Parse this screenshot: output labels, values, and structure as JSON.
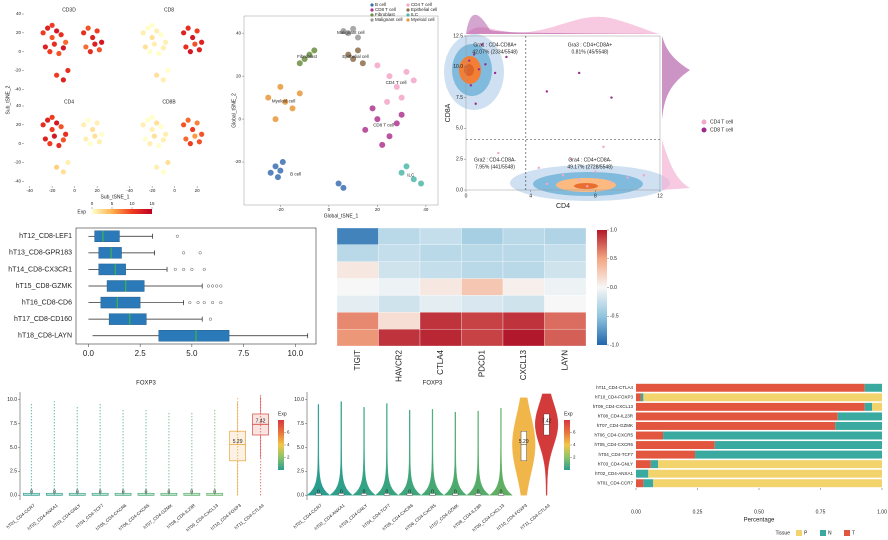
{
  "chart_data": [
    {
      "type": "tsne-expression",
      "xlabel": "Sub_tSNE_1",
      "ylabel": "Sub_tSNE_2",
      "xlim": [
        -45,
        35
      ],
      "ylim": [
        -45,
        40
      ],
      "xticks": [
        -40,
        -20,
        0,
        20
      ],
      "yticks": [
        -40,
        -20,
        0,
        20,
        40
      ],
      "x": [
        -28,
        -24,
        -20,
        -16,
        -12,
        -8,
        -26,
        -22,
        -18,
        -14,
        -10,
        -20,
        8,
        12,
        16,
        20,
        24,
        10,
        14,
        18,
        22,
        -16,
        -10,
        -6
      ],
      "y": [
        20,
        25,
        15,
        22,
        18,
        10,
        5,
        0,
        8,
        -2,
        4,
        28,
        20,
        25,
        15,
        22,
        10,
        5,
        0,
        8,
        2,
        -25,
        -30,
        -20
      ],
      "panels": [
        {
          "title": "CD3D",
          "exp": [
            10,
            12,
            9,
            13,
            11,
            8,
            12,
            10,
            11,
            9,
            13,
            10,
            11,
            9,
            12,
            10,
            13,
            8,
            11,
            12,
            9,
            10,
            12,
            11
          ]
        },
        {
          "title": "CD8",
          "exp": [
            1,
            0,
            2,
            1,
            0,
            1,
            2,
            0,
            1,
            0,
            1,
            0,
            12,
            11,
            13,
            10,
            12,
            11,
            13,
            9,
            12,
            2,
            1,
            0
          ]
        },
        {
          "title": "CD4",
          "exp": [
            11,
            12,
            10,
            13,
            9,
            11,
            12,
            10,
            13,
            11,
            9,
            10,
            1,
            0,
            2,
            1,
            0,
            1,
            0,
            2,
            1,
            3,
            2,
            1
          ]
        },
        {
          "title": "CD8B",
          "exp": [
            1,
            0,
            1,
            2,
            0,
            1,
            0,
            1,
            2,
            0,
            1,
            0,
            9,
            8,
            10,
            7,
            9,
            8,
            10,
            6,
            9,
            1,
            0,
            2
          ]
        }
      ],
      "colorbar": {
        "title": "Exp",
        "lim": [
          0,
          15
        ],
        "ticks": [
          0,
          5,
          10,
          15
        ],
        "colors": [
          "#ffffcc",
          "#feb24c",
          "#f03b20",
          "#bd0026"
        ]
      }
    },
    {
      "type": "tsne-clusters",
      "xlabel": "Global_tSNE_1",
      "ylabel": "Global_tSNE_2",
      "xlim": [
        -35,
        45
      ],
      "ylim": [
        -40,
        48
      ],
      "xticks": [
        -20,
        0,
        20,
        40
      ],
      "yticks": [
        -20,
        0,
        20,
        40
      ],
      "series": [
        {
          "name": "B cell",
          "color": "#3a6fb0",
          "x": [
            -22,
            -20,
            -24,
            -19,
            -21,
            4,
            6
          ],
          "y": [
            -22,
            -24,
            -25,
            -20,
            -27,
            -30,
            -32
          ]
        },
        {
          "name": "CD4 T cell",
          "color": "#f4a6c8",
          "x": [
            20,
            25,
            28,
            32,
            24,
            30,
            35
          ],
          "y": [
            25,
            20,
            15,
            22,
            8,
            10,
            18
          ]
        },
        {
          "name": "CD8 T cell",
          "color": "#b0358f",
          "x": [
            15,
            20,
            25,
            18,
            28,
            22,
            30
          ],
          "y": [
            -5,
            0,
            -8,
            5,
            -2,
            -12,
            2
          ]
        },
        {
          "name": "Epithelial cell",
          "color": "#8c6d4b",
          "x": [
            10,
            12,
            8,
            14
          ],
          "y": [
            28,
            32,
            30,
            26
          ]
        },
        {
          "name": "Fibroblast",
          "color": "#6b8e3f",
          "x": [
            -10,
            -8,
            -12,
            -6
          ],
          "y": [
            28,
            30,
            26,
            32
          ]
        },
        {
          "name": "ILC",
          "color": "#4db8a8",
          "x": [
            30,
            35,
            32,
            38
          ],
          "y": [
            -25,
            -28,
            -22,
            -30
          ]
        },
        {
          "name": "Malignant cell",
          "color": "#9a9a9a",
          "x": [
            8,
            10,
            12,
            6
          ],
          "y": [
            40,
            42,
            38,
            41
          ]
        },
        {
          "name": "Myeloid cell",
          "color": "#e8983a",
          "x": [
            -25,
            -20,
            -15,
            -22,
            -18,
            -12
          ],
          "y": [
            10,
            15,
            5,
            0,
            8,
            12
          ]
        }
      ]
    },
    {
      "type": "density-scatter",
      "xlabel": "CD4",
      "ylabel": "CD8A",
      "xlim": [
        0,
        12
      ],
      "ylim": [
        0,
        12.5
      ],
      "xticks": [
        0,
        4,
        8,
        12
      ],
      "yticks": [
        {
          "value": 0,
          "label": "0.0"
        },
        2.5,
        {
          "value": 5,
          "label": "5.0"
        },
        7.5,
        {
          "value": 10,
          "label": "10.0"
        },
        12.5
      ],
      "cutoff_x": 3.7,
      "cutoff_y": 4.1,
      "quadrants": [
        {
          "name": "Gra1 : CD4-CD8A+",
          "value": "42.07% (2334/5548)"
        },
        {
          "name": "Gra3 : CD4+CD8A+",
          "value": "0.81% (45/5548)"
        },
        {
          "name": "Gra2 : CD4-CD8A-",
          "value": "7.95% (441/5548)"
        },
        {
          "name": "Gra4 : CD4+CD8A-",
          "value": "49.17% (2728/5548)"
        }
      ],
      "series": [
        {
          "name": "CD4 T cell",
          "color": "#f2a7cf",
          "x": [
            5,
            6,
            7,
            8,
            9,
            6.5,
            7.5,
            10,
            4.5,
            2,
            8.5,
            11
          ],
          "y": [
            0.5,
            1.2,
            0.8,
            1.5,
            0.6,
            2.5,
            0.3,
            1,
            1.8,
            3,
            3.5,
            1.2
          ]
        },
        {
          "name": "CD8 T cell",
          "color": "#9b2c8c",
          "x": [
            0.2,
            0.5,
            0.8,
            1.2,
            0.3,
            1.8,
            2.5,
            0.6,
            5,
            7,
            9,
            1
          ],
          "y": [
            10.5,
            11,
            9.8,
            10.2,
            8.5,
            9.5,
            10.8,
            7,
            8,
            9.5,
            7.5,
            11.8
          ]
        }
      ]
    },
    {
      "type": "boxplot-h",
      "categories": [
        "hT12_CD8-LEF1",
        "hT13_CD8-GPR183",
        "hT14_CD8-CX3CR1",
        "hT15_CD8-GZMK",
        "hT16_CD8-CD6",
        "hT17_CD8-CD160",
        "hT18_CD8-LAYN"
      ],
      "min": [
        0,
        0,
        0,
        0,
        0,
        0,
        0.2
      ],
      "q1": [
        0.3,
        0.5,
        0.5,
        0.9,
        0.6,
        1,
        3.4
      ],
      "median": [
        0.7,
        1.1,
        1.3,
        1.8,
        1.4,
        2,
        5.2
      ],
      "q3": [
        1.5,
        1.6,
        1.8,
        2.7,
        2.5,
        2.8,
        6.8
      ],
      "max": [
        3.1,
        3.2,
        3.8,
        5.5,
        4.6,
        5.5,
        10.6
      ],
      "outliers": [
        [
          4.3
        ],
        [
          4.6,
          5.4
        ],
        [
          4.2,
          4.6,
          5,
          5.6
        ],
        [
          5.8,
          6,
          6.2,
          6.4
        ],
        [
          4.9,
          5.3,
          5.6,
          6,
          6.4
        ],
        [
          5.9
        ],
        []
      ],
      "color": "#2a7ab9",
      "median_color": "#3cb44b",
      "xlim": [
        -0.6,
        11
      ],
      "xticks": [
        {
          "value": 0,
          "label": "0.0"
        },
        2.5,
        {
          "value": 5,
          "label": "5.0"
        },
        7.5,
        {
          "value": 10,
          "label": "10.0"
        }
      ]
    },
    {
      "type": "heatmap",
      "columns": [
        "TIGIT",
        "HAVCR2",
        "CTLA4",
        "PDCD1",
        "CXCL13",
        "LAYN"
      ],
      "values": [
        [
          -0.85,
          -0.3,
          -0.25,
          -0.4,
          -0.3,
          -0.35
        ],
        [
          -0.3,
          -0.25,
          -0.3,
          -0.3,
          -0.3,
          -0.25
        ],
        [
          0.1,
          -0.2,
          -0.25,
          -0.3,
          -0.3,
          -0.2
        ],
        [
          0,
          -0.05,
          0.1,
          0.3,
          0.05,
          -0.05
        ],
        [
          -0.1,
          -0.2,
          -0.1,
          -0.15,
          -0.2,
          0
        ],
        [
          0.6,
          0.15,
          0.9,
          0.85,
          0.9,
          0.7
        ],
        [
          0.55,
          0.9,
          0.95,
          0.85,
          1,
          0.75
        ]
      ],
      "lim": [
        -1,
        1
      ],
      "colors": [
        "#2166ac",
        "#92c5de",
        "#f7f7f7",
        "#f4a582",
        "#b2182b"
      ],
      "ticks": [
        {
          "value": 1,
          "label": "1.0"
        },
        0.5,
        {
          "value": 0,
          "label": "0.0"
        },
        -0.5,
        {
          "value": -1,
          "label": "-1.0"
        }
      ]
    },
    {
      "type": "box-jitter",
      "title": "FOXP3",
      "categories": [
        "hT01_CD4-CCR7",
        "hT02_CD4-ANXA1",
        "hT03_CD4-GNLY",
        "hT04_CD4-TCF7",
        "hT05_CD4-CXCR6",
        "hT06_CD4-CXCR5",
        "hT07_CD4-GZMK",
        "hT08_CD4-IL23R",
        "hT09_CD4-CXCL13",
        "hT10_CD4-FOXP3",
        "hT11_CD4-CTLA4"
      ],
      "q1": [
        0,
        0,
        0,
        0,
        0,
        0,
        0,
        0,
        0,
        3.6,
        6.3
      ],
      "median": [
        0,
        0,
        0,
        0,
        0,
        0,
        0,
        0,
        0,
        5.29,
        7.42
      ],
      "q3": [
        0.2,
        0.2,
        0.2,
        0.2,
        0.2,
        0.2,
        0.2,
        0.2,
        0.2,
        6.7,
        8.5
      ],
      "whisker_low": [
        0,
        0,
        0,
        0,
        0,
        0,
        0,
        0,
        0,
        0,
        3.9
      ],
      "whisker_high": [
        0.5,
        0.5,
        0.5,
        0.5,
        0.5,
        0.5,
        0.5,
        0.5,
        0.5,
        9.8,
        10.3
      ],
      "point_max": [
        9.5,
        9.8,
        9.2,
        9.6,
        8.9,
        9,
        8.7,
        8.8,
        9.1,
        10.2,
        10.6
      ],
      "colors": [
        "#2a9d8f",
        "#2e9f8a",
        "#33a285",
        "#38a47f",
        "#3ea67a",
        "#45a874",
        "#4caa6e",
        "#55ac68",
        "#5fae62",
        "#e8a33c",
        "#d9473f"
      ],
      "ylim": [
        -0.5,
        10.8
      ],
      "yticks": [
        {
          "value": 0,
          "label": "0.0"
        },
        2.5,
        {
          "value": 5,
          "label": "5.0"
        },
        7.5,
        {
          "value": 10,
          "label": "10.0"
        }
      ],
      "colorbar": {
        "title": "Exp",
        "lim": [
          0,
          8
        ],
        "ticks": [
          2,
          4,
          6
        ],
        "colors": [
          "#2a9d8f",
          "#8cc26b",
          "#f1c84b",
          "#e8743c",
          "#d9373f"
        ]
      }
    },
    {
      "type": "violin",
      "title": "FOXP3",
      "categories": [
        "hT01_CD4-CCR7",
        "hT02_CD4-ANXA1",
        "hT03_CD4-GNLY",
        "hT04_CD4-TCF7",
        "hT05_CD4-CXCR6",
        "hT06_CD4-CXCR5",
        "hT07_CD4-GZMK",
        "hT08_CD4-IL23R",
        "hT09_CD4-CXCL13",
        "hT10_CD4-FOXP3",
        "hT11_CD4-CTLA4"
      ],
      "q1": [
        0,
        0,
        0,
        0,
        0,
        0,
        0,
        0,
        0,
        3.6,
        6.3
      ],
      "median": [
        0,
        0,
        0,
        0,
        0,
        0,
        0,
        0,
        0,
        5.29,
        7.42
      ],
      "q3": [
        0.2,
        0.2,
        0.2,
        0.2,
        0.2,
        0.2,
        0.2,
        0.2,
        0.2,
        6.7,
        8.5
      ],
      "max": [
        9.5,
        9.8,
        9.2,
        9.6,
        8.9,
        9,
        8.7,
        8.8,
        9.1,
        10.2,
        10.6
      ],
      "colors": [
        "#2a9d8f",
        "#2e9f8a",
        "#33a285",
        "#38a47f",
        "#3ea67a",
        "#45a874",
        "#4caa6e",
        "#55ac68",
        "#5fae62",
        "#f0b64a",
        "#d33a3a"
      ],
      "ylim": [
        -0.5,
        10.8
      ],
      "yticks": [
        {
          "value": 0,
          "label": "0.0"
        },
        2.5,
        {
          "value": 5,
          "label": "5.0"
        },
        7.5,
        {
          "value": 10,
          "label": "10.0"
        }
      ],
      "colorbar": {
        "title": "Exp",
        "lim": [
          0,
          8
        ],
        "ticks": [
          2,
          4,
          6
        ],
        "colors": [
          "#2a9d8f",
          "#8cc26b",
          "#f1c84b",
          "#e8743c",
          "#d9373f"
        ]
      }
    },
    {
      "type": "stacked-bar-h",
      "xlabel": "Percentage",
      "legend_title": "Tissue",
      "categories": [
        "hT11_CD4-CTLA4",
        "hT10_CD4-FOXP3",
        "hT09_CD4-CXCL13",
        "hT08_CD4-IL23R",
        "hT07_CD4-GZMK",
        "hT06_CD4-CXCR5",
        "hT05_CD4-CXCR6",
        "hT04_CD4-TCF7",
        "hT03_CD4-GNLY",
        "hT02_CD4-ANXA1",
        "hT01_CD4-CCR7"
      ],
      "series": [
        {
          "name": "P",
          "color": "#f3d36b",
          "values": [
            0,
            0.97,
            0.04,
            0,
            0,
            0,
            0,
            0,
            0.91,
            0.95,
            0.93
          ]
        },
        {
          "name": "N",
          "color": "#3aa99f",
          "values": [
            0.07,
            0.01,
            0.03,
            0.18,
            0.19,
            0.89,
            0.68,
            0.76,
            0.03,
            0.05,
            0.04
          ]
        },
        {
          "name": "T",
          "color": "#e2563f",
          "values": [
            0.93,
            0.02,
            0.93,
            0.82,
            0.81,
            0.11,
            0.32,
            0.24,
            0.06,
            0,
            0.03
          ]
        }
      ],
      "xlim": [
        0,
        1
      ],
      "xticks": [
        {
          "value": 0,
          "label": "0.00"
        },
        0.25,
        {
          "value": 0.5,
          "label": "0.50"
        },
        0.75,
        {
          "value": 1,
          "label": "1.00"
        }
      ]
    }
  ]
}
